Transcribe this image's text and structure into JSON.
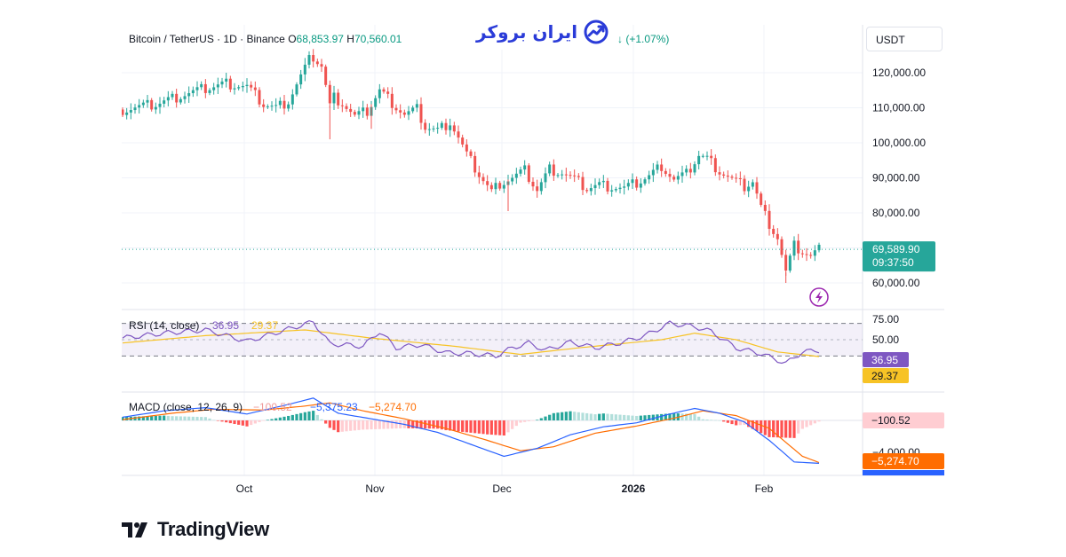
{
  "brand": {
    "text": "ایران بروکر",
    "icon": "trend-line-icon"
  },
  "footer": {
    "logo_text": "TradingView",
    "logo_icon": "tradingview-logo-icon"
  },
  "header": {
    "symbol": "Bitcoin / TetherUS · 1D · Binance",
    "open_label": "O",
    "open_value": "68,853.97",
    "high_label": "H",
    "high_value": "70,560.01",
    "change": "↓ (+1.07%)",
    "currency": "USDT"
  },
  "colors": {
    "up": "#26a69a",
    "down": "#ef5350",
    "rsi_line": "#7e57c2",
    "rsi_ma": "#f7c325",
    "macd_line": "#2962ff",
    "signal_line": "#ff6d00",
    "hist_pos_strong": "#26a69a",
    "hist_pos_weak": "#b2dfdb",
    "hist_neg_strong": "#ff5252",
    "hist_neg_weak": "#ffcdd2"
  },
  "price_axis": {
    "ticks": [
      "120,000.00",
      "110,000.00",
      "100,000.00",
      "90,000.00",
      "80,000.00",
      "60,000.00"
    ],
    "last_price": "69,589.90",
    "countdown": "09:37:50"
  },
  "rsi": {
    "title": "RSI (14, close)",
    "value1": "36.95",
    "value2": "29.37",
    "ticks": [
      "75.00",
      "50.00"
    ],
    "badge_value": "36.95",
    "badge_ma": "29.37"
  },
  "macd": {
    "title": "MACD (close, 12, 26, 9)",
    "hist_value": "−100.52",
    "macd_value": "−5,375.23",
    "signal_value": "−5,274.70",
    "ticks": [
      "−4,000.00"
    ],
    "badge_hist": "−100.52",
    "badge_signal": "−5,274.70",
    "badge_macd": "−5,375.23"
  },
  "time_axis": {
    "labels": [
      "Oct",
      "Nov",
      "Dec",
      "2026",
      "Feb"
    ]
  },
  "chart_data": {
    "type": "candlestick",
    "symbol": "Bitcoin / TetherUS",
    "interval": "1D",
    "exchange": "Binance",
    "time_labels": [
      "Oct",
      "Nov",
      "Dec",
      "2026",
      "Feb"
    ],
    "price_ticks": [
      120000,
      110000,
      100000,
      90000,
      80000,
      60000
    ],
    "last_price": 69589.9,
    "close_path": [
      [
        0,
        109500
      ],
      [
        8,
        111000
      ],
      [
        14,
        113500
      ],
      [
        20,
        115500
      ],
      [
        25,
        117000
      ],
      [
        30,
        116000
      ],
      [
        34,
        111000
      ],
      [
        37,
        110000
      ],
      [
        40,
        112000
      ],
      [
        43,
        119000
      ],
      [
        45,
        123500
      ],
      [
        46,
        124500
      ],
      [
        48,
        122000
      ],
      [
        50,
        110500
      ],
      [
        51,
        113000
      ],
      [
        53,
        111500
      ],
      [
        56,
        107500
      ],
      [
        59,
        109000
      ],
      [
        62,
        115000
      ],
      [
        65,
        111500
      ],
      [
        68,
        108000
      ],
      [
        71,
        109500
      ],
      [
        73,
        104500
      ],
      [
        76,
        103500
      ],
      [
        79,
        106000
      ],
      [
        81,
        101500
      ],
      [
        83,
        96500
      ],
      [
        86,
        91000
      ],
      [
        89,
        86000
      ],
      [
        91,
        88500
      ],
      [
        94,
        90000
      ],
      [
        97,
        92000
      ],
      [
        100,
        86500
      ],
      [
        103,
        92500
      ],
      [
        106,
        91500
      ],
      [
        109,
        89500
      ],
      [
        112,
        87000
      ],
      [
        115,
        88000
      ],
      [
        118,
        87500
      ],
      [
        121,
        87000
      ],
      [
        124,
        88500
      ],
      [
        127,
        90500
      ],
      [
        130,
        93500
      ],
      [
        133,
        89500
      ],
      [
        136,
        91000
      ],
      [
        139,
        96500
      ],
      [
        141,
        95500
      ],
      [
        144,
        92000
      ],
      [
        147,
        89500
      ],
      [
        150,
        87500
      ],
      [
        152,
        89000
      ],
      [
        154,
        81500
      ],
      [
        156,
        77000
      ],
      [
        158,
        73000
      ],
      [
        160,
        63000
      ],
      [
        162,
        70500
      ],
      [
        164,
        69000
      ],
      [
        166,
        67500
      ],
      [
        168,
        69589.9
      ]
    ],
    "rsi": {
      "period": 14,
      "value": 36.95,
      "ma_value": 29.37,
      "levels": [
        70,
        30
      ],
      "path": [
        [
          0,
          52
        ],
        [
          10,
          58
        ],
        [
          20,
          62
        ],
        [
          30,
          48
        ],
        [
          42,
          66
        ],
        [
          46,
          72
        ],
        [
          50,
          45
        ],
        [
          58,
          42
        ],
        [
          62,
          60
        ],
        [
          66,
          40
        ],
        [
          72,
          44
        ],
        [
          78,
          34
        ],
        [
          84,
          33
        ],
        [
          90,
          30
        ],
        [
          94,
          40
        ],
        [
          98,
          46
        ],
        [
          102,
          37
        ],
        [
          108,
          47
        ],
        [
          114,
          40
        ],
        [
          120,
          46
        ],
        [
          126,
          55
        ],
        [
          132,
          70
        ],
        [
          138,
          66
        ],
        [
          142,
          60
        ],
        [
          148,
          40
        ],
        [
          154,
          33
        ],
        [
          160,
          21
        ],
        [
          164,
          35
        ],
        [
          168,
          36.95
        ]
      ],
      "ma_path": [
        [
          0,
          46
        ],
        [
          20,
          55
        ],
        [
          44,
          62
        ],
        [
          60,
          52
        ],
        [
          80,
          42
        ],
        [
          96,
          32
        ],
        [
          110,
          40
        ],
        [
          130,
          50
        ],
        [
          138,
          58
        ],
        [
          148,
          50
        ],
        [
          158,
          35
        ],
        [
          168,
          29.37
        ]
      ]
    },
    "macd": {
      "fast": 12,
      "slow": 26,
      "signal": 9,
      "histogram": -100.52,
      "macd": -5375.23,
      "signal_value": -5274.7,
      "macd_path": [
        [
          0,
          400
        ],
        [
          10,
          1200
        ],
        [
          20,
          1600
        ],
        [
          30,
          800
        ],
        [
          40,
          2000
        ],
        [
          46,
          2800
        ],
        [
          52,
          900
        ],
        [
          60,
          200
        ],
        [
          68,
          -500
        ],
        [
          76,
          -1500
        ],
        [
          84,
          -3000
        ],
        [
          92,
          -4500
        ],
        [
          100,
          -3500
        ],
        [
          108,
          -1800
        ],
        [
          116,
          -800
        ],
        [
          124,
          -300
        ],
        [
          132,
          800
        ],
        [
          138,
          1500
        ],
        [
          144,
          900
        ],
        [
          150,
          -200
        ],
        [
          156,
          -2500
        ],
        [
          162,
          -5200
        ],
        [
          168,
          -5375.23
        ]
      ],
      "signal_path": [
        [
          0,
          100
        ],
        [
          12,
          900
        ],
        [
          22,
          1400
        ],
        [
          34,
          1300
        ],
        [
          44,
          1800
        ],
        [
          50,
          2200
        ],
        [
          58,
          1200
        ],
        [
          68,
          200
        ],
        [
          78,
          -1000
        ],
        [
          88,
          -2500
        ],
        [
          96,
          -3800
        ],
        [
          104,
          -3300
        ],
        [
          114,
          -1600
        ],
        [
          124,
          -700
        ],
        [
          134,
          400
        ],
        [
          140,
          1200
        ],
        [
          148,
          600
        ],
        [
          156,
          -1000
        ],
        [
          164,
          -4500
        ],
        [
          168,
          -5274.7
        ]
      ]
    }
  }
}
